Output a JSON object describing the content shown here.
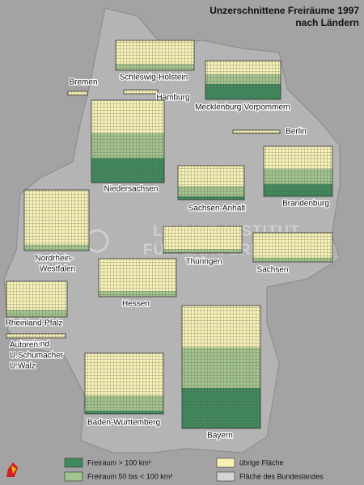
{
  "header": {
    "title_lines": [
      "Unzerschnittene Freiräume 1997",
      "nach Ländern"
    ]
  },
  "states": [
    {
      "label": "Schleswig-Holstein"
    },
    {
      "label": "Mecklenburg-Vorpommern"
    },
    {
      "label": "Bremen"
    },
    {
      "label": "Hamburg"
    },
    {
      "label": "Berlin"
    },
    {
      "label": "Niedersachsen"
    },
    {
      "label": "Brandenburg"
    },
    {
      "label": "Sachsen-Anhalt"
    },
    {
      "label": [
        "Nordrhein-",
        "Westfalen"
      ]
    },
    {
      "label": "Thüringen"
    },
    {
      "label": "Sachsen"
    },
    {
      "label": "Hessen"
    },
    {
      "label": "Rheinland-Pfalz"
    },
    {
      "label": "Saarland"
    },
    {
      "label": "Bayern"
    },
    {
      "label": "Baden-Württemberg"
    }
  ],
  "authors": [
    "Autoren:",
    "U.Schumacher",
    "U.Walz"
  ],
  "watermark": [
    "LEIBNIZ-INSTITUT",
    "FÜR LÄNDERKUNDE"
  ],
  "legend": [
    {
      "label": "Freiraum > 100 km²"
    },
    {
      "label": "Freiraum 50 bis < 100 km²"
    },
    {
      "label": "übrige Fläche"
    },
    {
      "label": "Fläche des Bundeslandes"
    }
  ]
}
